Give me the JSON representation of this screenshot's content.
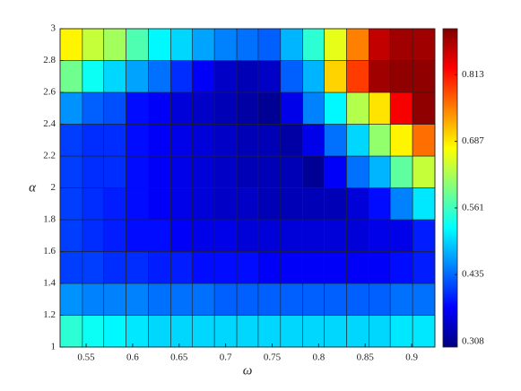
{
  "chart_data": {
    "type": "heatmap",
    "xlabel": "ω",
    "ylabel": "α",
    "x": [
      0.522,
      0.546,
      0.569,
      0.593,
      0.617,
      0.641,
      0.664,
      0.688,
      0.712,
      0.735,
      0.759,
      0.783,
      0.806,
      0.83,
      0.854,
      0.877,
      0.901,
      0.925
    ],
    "y": [
      1,
      1.2,
      1.4,
      1.6,
      1.8,
      2,
      2.2,
      2.4,
      2.6,
      2.8,
      3
    ],
    "z": [
      [
        0.55,
        0.53,
        0.52,
        0.51,
        0.5,
        0.5,
        0.5,
        0.5,
        0.5,
        0.5,
        0.5,
        0.5,
        0.5,
        0.5,
        0.5,
        0.51,
        0.51
      ],
      [
        0.46,
        0.45,
        0.45,
        0.45,
        0.44,
        0.44,
        0.44,
        0.43,
        0.43,
        0.43,
        0.43,
        0.43,
        0.43,
        0.43,
        0.43,
        0.44,
        0.44
      ],
      [
        0.41,
        0.41,
        0.4,
        0.4,
        0.39,
        0.39,
        0.38,
        0.38,
        0.38,
        0.37,
        0.37,
        0.37,
        0.37,
        0.37,
        0.37,
        0.38,
        0.39
      ],
      [
        0.41,
        0.4,
        0.39,
        0.38,
        0.38,
        0.37,
        0.36,
        0.36,
        0.35,
        0.35,
        0.35,
        0.35,
        0.35,
        0.35,
        0.36,
        0.36,
        0.39
      ],
      [
        0.41,
        0.4,
        0.39,
        0.38,
        0.37,
        0.36,
        0.35,
        0.34,
        0.34,
        0.33,
        0.33,
        0.33,
        0.33,
        0.35,
        0.38,
        0.45,
        0.51
      ],
      [
        0.41,
        0.4,
        0.4,
        0.38,
        0.37,
        0.36,
        0.35,
        0.34,
        0.33,
        0.33,
        0.33,
        0.31,
        0.37,
        0.44,
        0.48,
        0.58,
        0.64
      ],
      [
        0.41,
        0.4,
        0.4,
        0.38,
        0.37,
        0.36,
        0.35,
        0.34,
        0.33,
        0.33,
        0.32,
        0.36,
        0.44,
        0.5,
        0.61,
        0.68,
        0.76
      ],
      [
        0.46,
        0.43,
        0.42,
        0.38,
        0.37,
        0.35,
        0.34,
        0.33,
        0.32,
        0.31,
        0.36,
        0.45,
        0.52,
        0.63,
        0.69,
        0.83,
        0.89
      ],
      [
        0.59,
        0.53,
        0.5,
        0.47,
        0.44,
        0.4,
        0.37,
        0.34,
        0.33,
        0.34,
        0.43,
        0.48,
        0.7,
        0.79,
        0.88,
        0.89,
        0.89
      ],
      [
        0.68,
        0.64,
        0.62,
        0.57,
        0.52,
        0.5,
        0.47,
        0.45,
        0.44,
        0.43,
        0.48,
        0.55,
        0.66,
        0.75,
        0.86,
        0.88,
        0.88
      ]
    ],
    "xlim": [
      0.522,
      0.925
    ],
    "ylim": [
      1,
      3
    ],
    "xticks": [
      0.55,
      0.6,
      0.65,
      0.7,
      0.75,
      0.8,
      0.85,
      0.9
    ],
    "yticks": [
      1,
      1.2,
      1.4,
      1.6,
      1.8,
      2,
      2.2,
      2.4,
      2.6,
      2.8,
      3
    ],
    "colormap": "jet",
    "clim": [
      0.298,
      0.9
    ],
    "cticks": [
      0.308,
      0.435,
      0.561,
      0.687,
      0.813
    ]
  }
}
